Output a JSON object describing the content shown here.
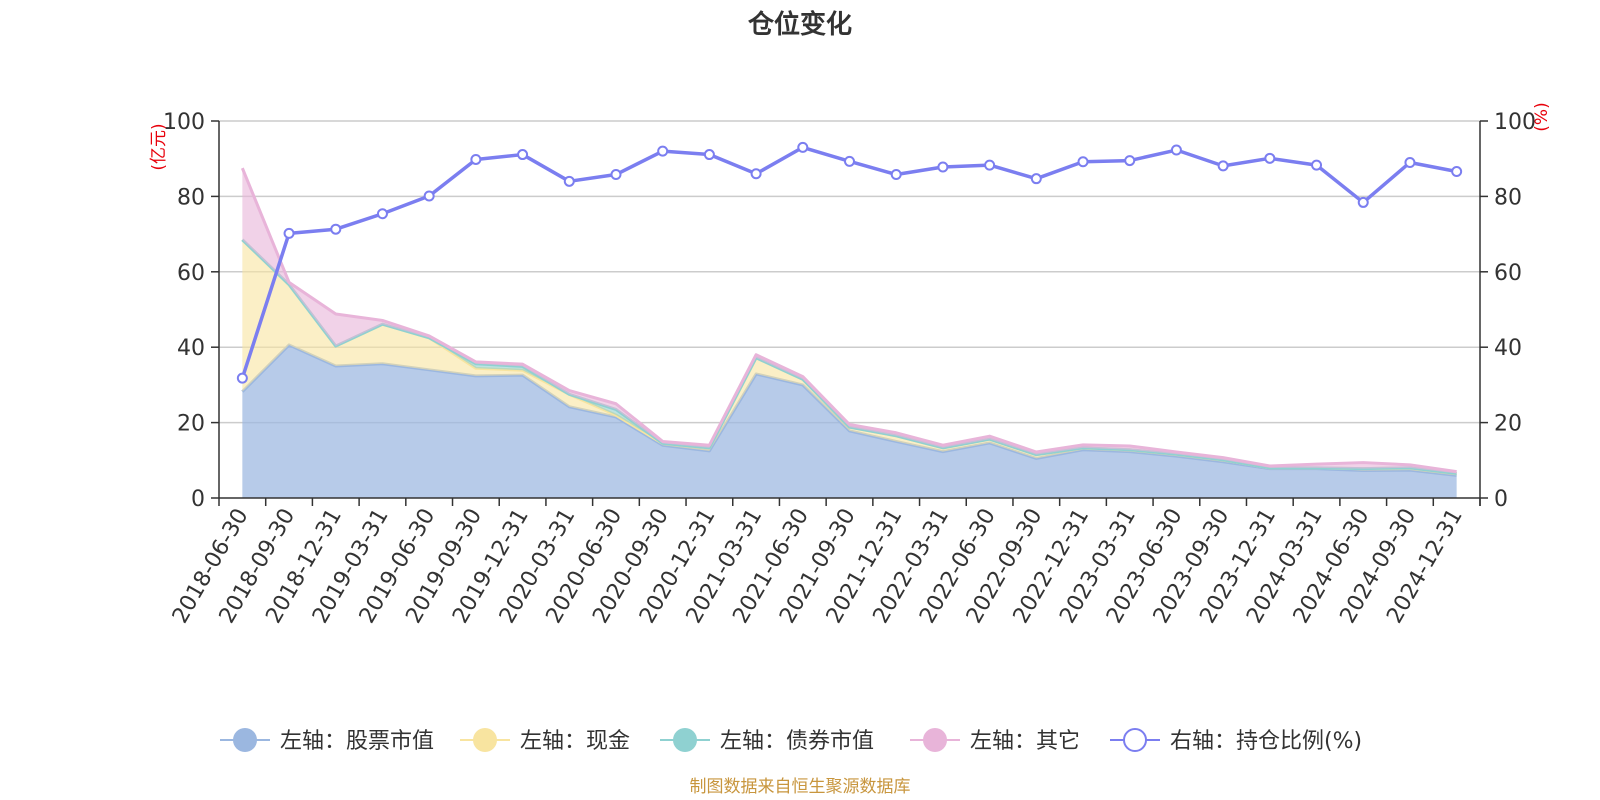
{
  "chart_data": {
    "type": "area",
    "title": "仓位变化",
    "left_axis_unit": "(亿元)",
    "right_axis_unit": "(%)",
    "left_ylim": [
      0,
      100
    ],
    "right_ylim": [
      0,
      100
    ],
    "left_yticks": [
      0,
      20,
      40,
      60,
      80,
      100
    ],
    "right_yticks": [
      0,
      20,
      40,
      60,
      80,
      100
    ],
    "grid": true,
    "legend_position": "bottom",
    "categories": [
      "2018-06-30",
      "2018-09-30",
      "2018-12-31",
      "2019-03-31",
      "2019-06-30",
      "2019-09-30",
      "2019-12-31",
      "2020-03-31",
      "2020-06-30",
      "2020-09-30",
      "2020-12-31",
      "2021-03-31",
      "2021-06-30",
      "2021-09-30",
      "2021-12-31",
      "2022-03-31",
      "2022-06-30",
      "2022-09-30",
      "2022-12-31",
      "2023-03-31",
      "2023-06-30",
      "2023-09-30",
      "2023-12-31",
      "2024-03-31",
      "2024-06-30",
      "2024-09-30",
      "2024-12-31"
    ],
    "series": [
      {
        "name": "左轴：股票市值",
        "axis": "left",
        "kind": "stacked-area",
        "color": "#9bb7e0",
        "values": [
          28.2,
          40.6,
          35.0,
          35.6,
          34.0,
          32.4,
          32.6,
          24.2,
          21.5,
          14.0,
          12.5,
          32.9,
          30.0,
          17.8,
          15.0,
          12.3,
          14.6,
          10.5,
          12.8,
          12.3,
          11.1,
          9.6,
          7.8,
          7.8,
          7.3,
          7.4,
          6.0
        ]
      },
      {
        "name": "左轴：现金",
        "axis": "left",
        "kind": "stacked-area",
        "color": "#f8e4a0",
        "values": [
          40.3,
          16.0,
          5.3,
          10.5,
          8.5,
          2.0,
          1.3,
          3.3,
          0.5,
          0.5,
          0.8,
          4.3,
          1.5,
          1.0,
          1.5,
          1.0,
          1.0,
          1.0,
          0.5,
          0.5,
          0.5,
          0.5,
          0.2,
          0.2,
          0.5,
          0.6,
          0.5
        ]
      },
      {
        "name": "左轴：债券市值",
        "axis": "left",
        "kind": "stacked-area",
        "color": "#8fd1d1",
        "values": [
          0,
          0,
          0,
          0,
          0,
          1.2,
          1.0,
          0,
          1.5,
          0,
          0,
          0,
          0,
          0,
          0,
          0,
          0,
          0,
          0,
          0,
          0,
          0,
          0,
          0,
          0,
          0,
          0
        ]
      },
      {
        "name": "左轴：其它",
        "axis": "left",
        "kind": "stacked-area",
        "color": "#e8b4d9",
        "values": [
          19.0,
          0.6,
          8.5,
          1.0,
          0.5,
          0.5,
          0.6,
          1.0,
          1.5,
          0.5,
          0.7,
          0.8,
          0.7,
          0.7,
          0.8,
          0.7,
          0.8,
          0.7,
          0.8,
          1.0,
          0.6,
          0.6,
          0.5,
          1.0,
          1.6,
          0.8,
          0.5
        ]
      },
      {
        "name": "右轴：持仓比例(%)",
        "axis": "right",
        "kind": "line",
        "color": "#7b7ef0",
        "values": [
          31.8,
          70.2,
          71.3,
          75.4,
          80.1,
          89.8,
          91.1,
          84.0,
          85.8,
          92.0,
          91.1,
          86.0,
          93.0,
          89.3,
          85.8,
          87.8,
          88.3,
          84.7,
          89.2,
          89.5,
          92.3,
          88.1,
          90.1,
          88.3,
          78.4,
          89.0,
          86.6
        ]
      }
    ],
    "source": "制图数据来自恒生聚源数据库"
  }
}
